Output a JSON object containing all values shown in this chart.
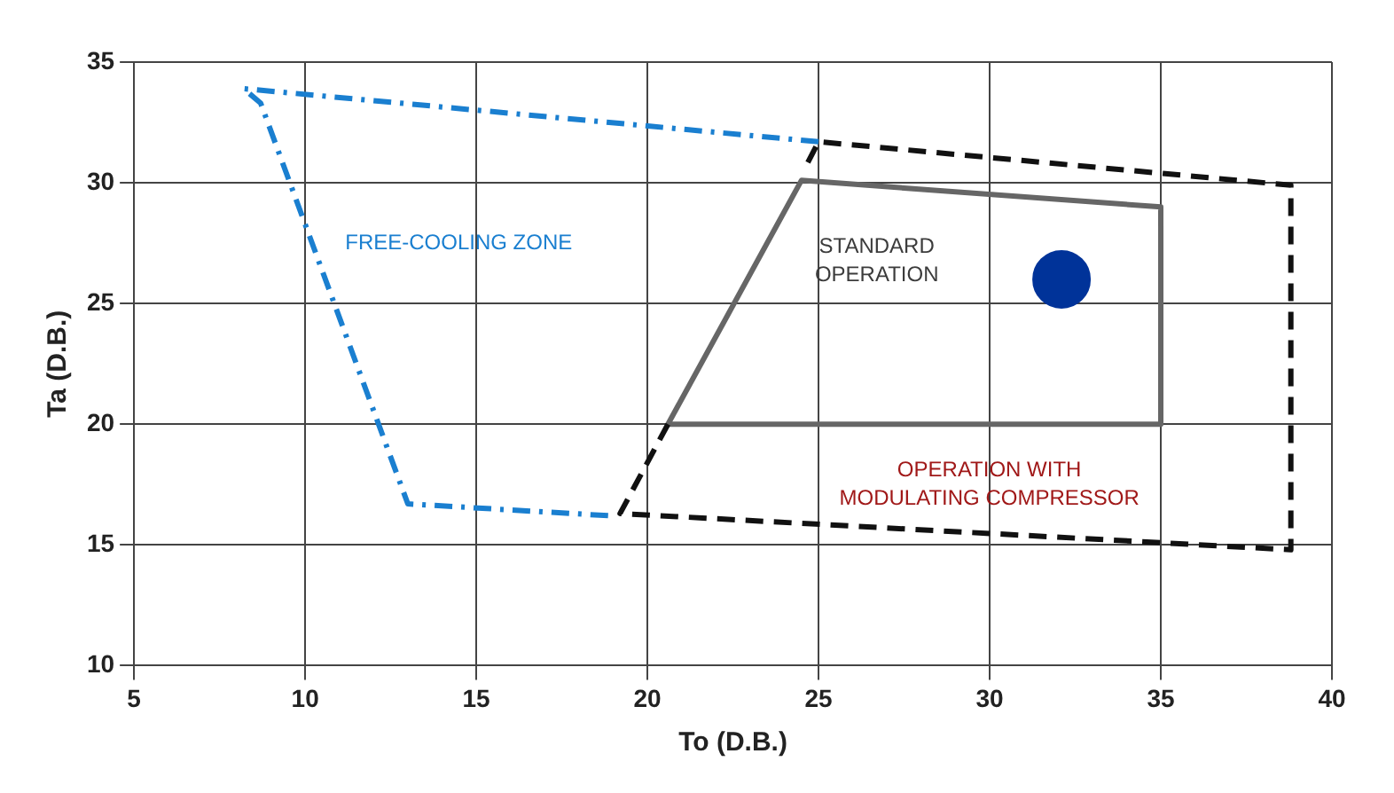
{
  "chart_data": {
    "type": "line",
    "xlabel": "To (D.B.)",
    "ylabel": "Ta (D.B.)",
    "xlim": [
      5,
      40
    ],
    "xticks": [
      5,
      10,
      15,
      20,
      25,
      30,
      35,
      40
    ],
    "ylim": [
      10,
      35
    ],
    "yticks": [
      10,
      15,
      20,
      25,
      30,
      35
    ],
    "grid": true,
    "legend": false,
    "marker": "none",
    "series": [
      {
        "color": "#1a7fd0",
        "line_style": "dashdot",
        "x": [
          25,
          8.2,
          8.7,
          13,
          19
        ],
        "values": [
          31.7,
          33.9,
          33.3,
          16.7,
          16.2
        ]
      },
      {
        "color": "#111111",
        "line_style": "dashed",
        "x": [
          20.6,
          19.2,
          38.8,
          38.8,
          25,
          24.6
        ],
        "values": [
          20,
          16.3,
          14.8,
          29.9,
          31.7,
          30.6
        ]
      },
      {
        "color": "#666666",
        "line_style": "solid",
        "x": [
          20.6,
          24.5,
          35,
          35
        ],
        "values": [
          20,
          30.1,
          29,
          20
        ]
      },
      {
        "color": "#666666",
        "line_style": "solid",
        "x": [
          20.6,
          35
        ],
        "values": [
          20,
          20
        ]
      },
      {
        "type": "scatter",
        "color": "#003399",
        "marker": "circle",
        "x": [
          32.1
        ],
        "values": [
          26
        ]
      }
    ],
    "annotations": [
      "FREE-COOLING ZONE",
      "STANDARD\nOPERATION",
      "OPERATION WITH\nMODULATING COMPRESSOR"
    ]
  }
}
